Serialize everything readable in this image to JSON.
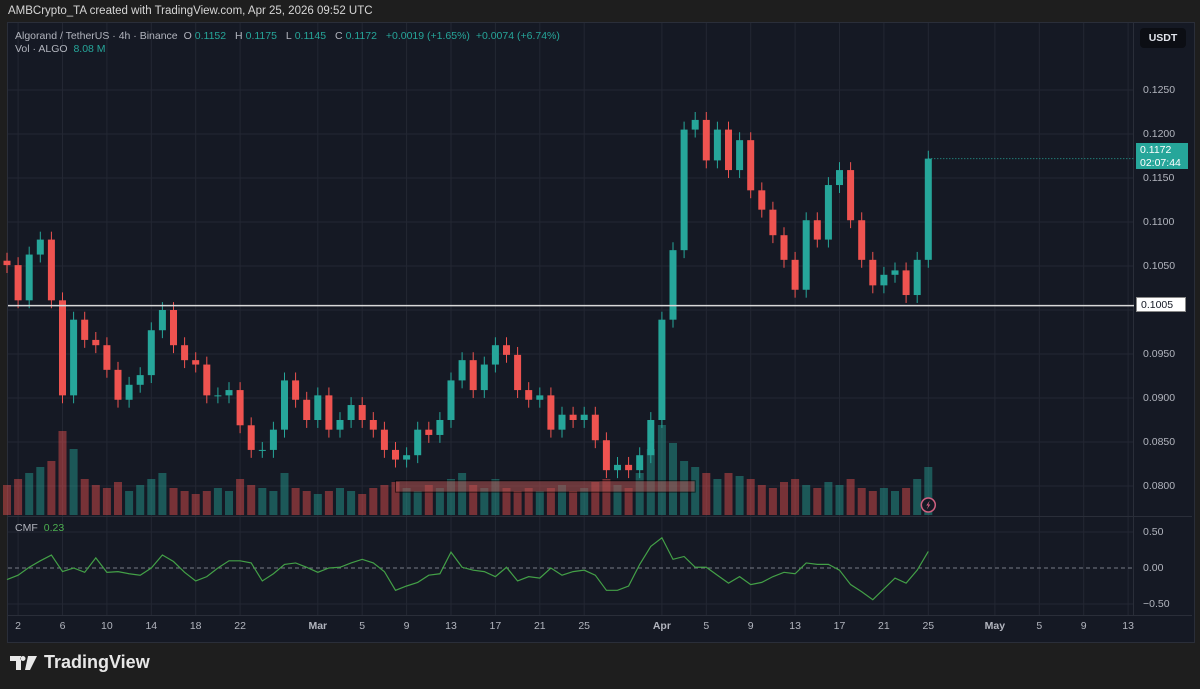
{
  "credit": "AMBCrypto_TA created with TradingView.com, Apr 25, 2026 09:52 UTC",
  "legend": {
    "symbol": "Algorand / TetherUS · 4h · Binance",
    "o_label": "O",
    "o": "0.1152",
    "h_label": "H",
    "h": "0.1175",
    "l_label": "L",
    "l": "0.1145",
    "c_label": "C",
    "c": "0.1172",
    "change": "+0.0019 (+1.65%)",
    "change2": "+0.0074 (+6.74%)",
    "vol_label": "Vol · ALGO",
    "vol_value": "8.08 M"
  },
  "currency": "USDT",
  "current_price": {
    "value": "0.1172",
    "countdown": "02:07:44"
  },
  "level_line": {
    "value": "0.1005",
    "price": 0.1005
  },
  "cmf": {
    "label": "CMF",
    "value": "0.23"
  },
  "branding": "TradingView",
  "colors": {
    "up": "#26a69a",
    "down": "#ef5350",
    "cmf": "#43a047",
    "background": "#151924",
    "zone": "#b0504f"
  },
  "chart_data": {
    "type": "candlestick",
    "interval": "4h",
    "resolution_recorded": "daily closes (approximate)",
    "start_date": "Feb 1",
    "price_axis": {
      "ticks": [
        "0.1250",
        "0.1200",
        "0.1150",
        "0.1100",
        "0.1050",
        "0.0950",
        "0.0900",
        "0.0850",
        "0.0800"
      ],
      "range": [
        0.0765,
        0.1295
      ]
    },
    "x_ticks": [
      {
        "label": "2",
        "day": 1
      },
      {
        "label": "6",
        "day": 5
      },
      {
        "label": "10",
        "day": 9
      },
      {
        "label": "14",
        "day": 13
      },
      {
        "label": "18",
        "day": 17
      },
      {
        "label": "22",
        "day": 21
      },
      {
        "label": "Mar",
        "day": 28,
        "major": true
      },
      {
        "label": "5",
        "day": 32
      },
      {
        "label": "9",
        "day": 36
      },
      {
        "label": "13",
        "day": 40
      },
      {
        "label": "17",
        "day": 44
      },
      {
        "label": "21",
        "day": 48
      },
      {
        "label": "25",
        "day": 52
      },
      {
        "label": "Apr",
        "day": 59,
        "major": true
      },
      {
        "label": "5",
        "day": 63
      },
      {
        "label": "9",
        "day": 67
      },
      {
        "label": "13",
        "day": 71
      },
      {
        "label": "17",
        "day": 75
      },
      {
        "label": "21",
        "day": 79
      },
      {
        "label": "25",
        "day": 83
      },
      {
        "label": "May",
        "day": 89,
        "major": true
      },
      {
        "label": "5",
        "day": 93
      },
      {
        "label": "9",
        "day": 97
      },
      {
        "label": "13",
        "day": 101
      }
    ],
    "close": [
      0.1051,
      0.1011,
      0.1063,
      0.108,
      0.1011,
      0.0903,
      0.0989,
      0.0966,
      0.096,
      0.0932,
      0.0898,
      0.0915,
      0.0926,
      0.0977,
      0.1,
      0.096,
      0.0943,
      0.0938,
      0.0903,
      0.0903,
      0.0909,
      0.0869,
      0.0841,
      0.0841,
      0.0864,
      0.092,
      0.0898,
      0.0875,
      0.0903,
      0.0864,
      0.0875,
      0.0892,
      0.0875,
      0.0864,
      0.0841,
      0.083,
      0.0835,
      0.0864,
      0.0858,
      0.0875,
      0.092,
      0.0943,
      0.0909,
      0.0938,
      0.096,
      0.0949,
      0.0909,
      0.0898,
      0.0903,
      0.0864,
      0.0881,
      0.0875,
      0.0881,
      0.0852,
      0.0818,
      0.0824,
      0.0818,
      0.0835,
      0.0875,
      0.0989,
      0.1068,
      0.1205,
      0.1216,
      0.117,
      0.1205,
      0.1159,
      0.1193,
      0.1136,
      0.1114,
      0.1085,
      0.1057,
      0.1023,
      0.1102,
      0.108,
      0.1142,
      0.1159,
      0.1102,
      0.1057,
      0.1028,
      0.104,
      0.1045,
      0.1017,
      0.1057,
      0.1172
    ],
    "volume_m": [
      10,
      12,
      14,
      16,
      18,
      28,
      22,
      12,
      10,
      9,
      11,
      8,
      10,
      12,
      14,
      9,
      8,
      7,
      8,
      9,
      8,
      12,
      10,
      9,
      8,
      14,
      9,
      8,
      7,
      8,
      9,
      8,
      7,
      9,
      10,
      11,
      9,
      8,
      10,
      9,
      12,
      14,
      10,
      9,
      12,
      9,
      8,
      9,
      8,
      9,
      10,
      8,
      9,
      11,
      12,
      10,
      9,
      14,
      22,
      30,
      24,
      18,
      16,
      14,
      12,
      14,
      13,
      12,
      10,
      9,
      11,
      12,
      10,
      9,
      11,
      10,
      12,
      9,
      8,
      9,
      8,
      9,
      12,
      16
    ],
    "cmf_values": [
      -0.16,
      -0.1,
      0.01,
      0.1,
      0.18,
      -0.05,
      0.0,
      -0.06,
      0.14,
      -0.06,
      -0.05,
      -0.08,
      -0.1,
      0.0,
      0.18,
      0.09,
      -0.06,
      -0.18,
      -0.12,
      0.0,
      0.1,
      0.1,
      0.07,
      -0.18,
      -0.08,
      0.05,
      0.07,
      0.01,
      -0.06,
      0.0,
      0.01,
      0.07,
      0.12,
      0.07,
      -0.05,
      -0.31,
      -0.25,
      -0.2,
      -0.1,
      -0.08,
      0.22,
      0.01,
      -0.03,
      -0.05,
      -0.12,
      0.01,
      -0.18,
      -0.12,
      -0.14,
      0.0,
      -0.1,
      -0.05,
      -0.03,
      -0.1,
      -0.31,
      -0.31,
      -0.25,
      0.05,
      0.3,
      0.42,
      0.12,
      0.16,
      0.01,
      0.01,
      -0.1,
      -0.21,
      -0.12,
      -0.23,
      -0.2,
      -0.12,
      -0.06,
      -0.08,
      0.07,
      0.05,
      0.05,
      -0.03,
      -0.23,
      -0.33,
      -0.44,
      -0.29,
      -0.14,
      -0.21,
      -0.03,
      0.23
    ],
    "cmf_axis": {
      "ticks": [
        "0.50",
        "0.00",
        "−0.50"
      ],
      "range": [
        -0.5,
        0.5
      ]
    },
    "zone": {
      "from_day": 35,
      "to_day": 62,
      "price_low": 0.0793,
      "price_high": 0.0806
    }
  }
}
